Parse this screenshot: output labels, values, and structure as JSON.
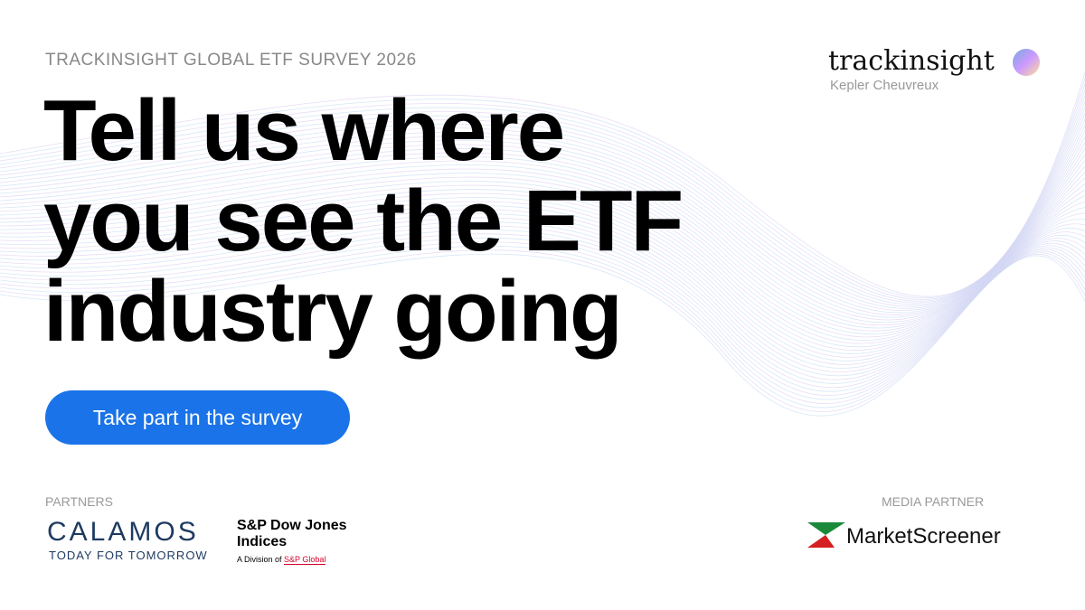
{
  "header": {
    "eyebrow": "TRACKINSIGHT GLOBAL ETF SURVEY 2026",
    "logo": "trackinsight",
    "logo_sub": "Kepler Cheuvreux"
  },
  "headline": [
    "Tell us where",
    "you see the ETF",
    "industry going"
  ],
  "button": "Take part in the survey",
  "partners": {
    "label": "PARTNERS",
    "calamos": "CALAMOS",
    "calamos_tag": "TODAY FOR TOMORROW",
    "spdj_line1": "S&P Dow Jones",
    "spdj_line2": "Indices",
    "spdj_division": "A Division of",
    "spdj_global": "S&P Global"
  },
  "media": {
    "label": "MEDIA PARTNER",
    "name": "MarketScreener"
  }
}
